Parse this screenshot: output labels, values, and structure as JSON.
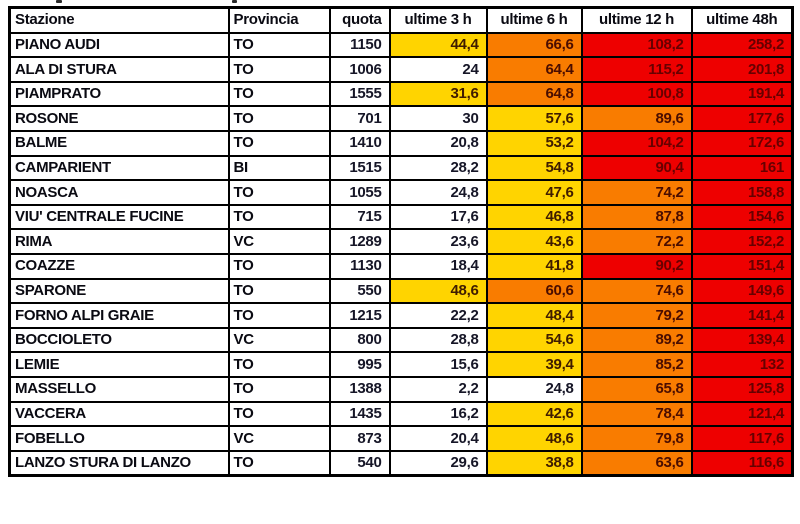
{
  "colors": {
    "band_white": "#FFFFFF",
    "band_yellow": "#FFD400",
    "band_orange": "#F97C00",
    "band_red": "#EE0000",
    "grid": "#000000",
    "text_default": "#0A0A12",
    "text_on_red": "#670000"
  },
  "table": {
    "columns": [
      {
        "key": "stazione",
        "label": "Stazione",
        "align": "left"
      },
      {
        "key": "provincia",
        "label": "Provincia",
        "align": "left"
      },
      {
        "key": "quota",
        "label": "quota",
        "align": "right"
      },
      {
        "key": "u3",
        "label": "ultime 3 h",
        "align": "center"
      },
      {
        "key": "u6",
        "label": "ultime 6 h",
        "align": "center"
      },
      {
        "key": "u12",
        "label": "ultime 12 h",
        "align": "center"
      },
      {
        "key": "u48",
        "label": "ultime 48h",
        "align": "center"
      }
    ],
    "rows": [
      {
        "stazione": "PIANO AUDI",
        "provincia": "TO",
        "quota": "1150",
        "values": [
          {
            "v": "44,4",
            "band": "yellow"
          },
          {
            "v": "66,6",
            "band": "orange"
          },
          {
            "v": "108,2",
            "band": "red"
          },
          {
            "v": "258,2",
            "band": "red"
          }
        ]
      },
      {
        "stazione": "ALA DI STURA",
        "provincia": "TO",
        "quota": "1006",
        "values": [
          {
            "v": "24",
            "band": "white"
          },
          {
            "v": "64,4",
            "band": "orange"
          },
          {
            "v": "115,2",
            "band": "red"
          },
          {
            "v": "201,8",
            "band": "red"
          }
        ]
      },
      {
        "stazione": "PIAMPRATO",
        "provincia": "TO",
        "quota": "1555",
        "values": [
          {
            "v": "31,6",
            "band": "yellow"
          },
          {
            "v": "64,8",
            "band": "orange"
          },
          {
            "v": "100,8",
            "band": "red"
          },
          {
            "v": "191,4",
            "band": "red"
          }
        ]
      },
      {
        "stazione": "ROSONE",
        "provincia": "TO",
        "quota": "701",
        "values": [
          {
            "v": "30",
            "band": "white"
          },
          {
            "v": "57,6",
            "band": "yellow"
          },
          {
            "v": "89,6",
            "band": "orange"
          },
          {
            "v": "177,6",
            "band": "red"
          }
        ]
      },
      {
        "stazione": "BALME",
        "provincia": "TO",
        "quota": "1410",
        "values": [
          {
            "v": "20,8",
            "band": "white"
          },
          {
            "v": "53,2",
            "band": "yellow"
          },
          {
            "v": "104,2",
            "band": "red"
          },
          {
            "v": "172,6",
            "band": "red"
          }
        ]
      },
      {
        "stazione": "CAMPARIENT",
        "provincia": "BI",
        "quota": "1515",
        "values": [
          {
            "v": "28,2",
            "band": "white"
          },
          {
            "v": "54,8",
            "band": "yellow"
          },
          {
            "v": "90,4",
            "band": "red"
          },
          {
            "v": "161",
            "band": "red"
          }
        ]
      },
      {
        "stazione": "NOASCA",
        "provincia": "TO",
        "quota": "1055",
        "values": [
          {
            "v": "24,8",
            "band": "white"
          },
          {
            "v": "47,6",
            "band": "yellow"
          },
          {
            "v": "74,2",
            "band": "orange"
          },
          {
            "v": "158,8",
            "band": "red"
          }
        ]
      },
      {
        "stazione": "VIU' CENTRALE FUCINE",
        "provincia": "TO",
        "quota": "715",
        "values": [
          {
            "v": "17,6",
            "band": "white"
          },
          {
            "v": "46,8",
            "band": "yellow"
          },
          {
            "v": "87,8",
            "band": "orange"
          },
          {
            "v": "154,6",
            "band": "red"
          }
        ]
      },
      {
        "stazione": "RIMA",
        "provincia": "VC",
        "quota": "1289",
        "values": [
          {
            "v": "23,6",
            "band": "white"
          },
          {
            "v": "43,6",
            "band": "yellow"
          },
          {
            "v": "72,2",
            "band": "orange"
          },
          {
            "v": "152,2",
            "band": "red"
          }
        ]
      },
      {
        "stazione": "COAZZE",
        "provincia": "TO",
        "quota": "1130",
        "values": [
          {
            "v": "18,4",
            "band": "white"
          },
          {
            "v": "41,8",
            "band": "yellow"
          },
          {
            "v": "90,2",
            "band": "red"
          },
          {
            "v": "151,4",
            "band": "red"
          }
        ]
      },
      {
        "stazione": "SPARONE",
        "provincia": "TO",
        "quota": "550",
        "values": [
          {
            "v": "48,6",
            "band": "yellow"
          },
          {
            "v": "60,6",
            "band": "orange"
          },
          {
            "v": "74,6",
            "band": "orange"
          },
          {
            "v": "149,6",
            "band": "red"
          }
        ]
      },
      {
        "stazione": "FORNO ALPI GRAIE",
        "provincia": "TO",
        "quota": "1215",
        "values": [
          {
            "v": "22,2",
            "band": "white"
          },
          {
            "v": "48,4",
            "band": "yellow"
          },
          {
            "v": "79,2",
            "band": "orange"
          },
          {
            "v": "141,4",
            "band": "red"
          }
        ]
      },
      {
        "stazione": "BOCCIOLETO",
        "provincia": "VC",
        "quota": "800",
        "values": [
          {
            "v": "28,8",
            "band": "white"
          },
          {
            "v": "54,6",
            "band": "yellow"
          },
          {
            "v": "89,2",
            "band": "orange"
          },
          {
            "v": "139,4",
            "band": "red"
          }
        ]
      },
      {
        "stazione": "LEMIE",
        "provincia": "TO",
        "quota": "995",
        "values": [
          {
            "v": "15,6",
            "band": "white"
          },
          {
            "v": "39,4",
            "band": "yellow"
          },
          {
            "v": "85,2",
            "band": "orange"
          },
          {
            "v": "132",
            "band": "red"
          }
        ]
      },
      {
        "stazione": "MASSELLO",
        "provincia": "TO",
        "quota": "1388",
        "values": [
          {
            "v": "2,2",
            "band": "white"
          },
          {
            "v": "24,8",
            "band": "white"
          },
          {
            "v": "65,8",
            "band": "orange"
          },
          {
            "v": "125,8",
            "band": "red"
          }
        ]
      },
      {
        "stazione": "VACCERA",
        "provincia": "TO",
        "quota": "1435",
        "values": [
          {
            "v": "16,2",
            "band": "white"
          },
          {
            "v": "42,6",
            "band": "yellow"
          },
          {
            "v": "78,4",
            "band": "orange"
          },
          {
            "v": "121,4",
            "band": "red"
          }
        ]
      },
      {
        "stazione": "FOBELLO",
        "provincia": "VC",
        "quota": "873",
        "values": [
          {
            "v": "20,4",
            "band": "white"
          },
          {
            "v": "48,6",
            "band": "yellow"
          },
          {
            "v": "79,8",
            "band": "orange"
          },
          {
            "v": "117,6",
            "band": "red"
          }
        ]
      },
      {
        "stazione": "LANZO STURA DI LANZO",
        "provincia": "TO",
        "quota": "540",
        "values": [
          {
            "v": "29,6",
            "band": "white"
          },
          {
            "v": "38,8",
            "band": "yellow"
          },
          {
            "v": "63,6",
            "band": "orange"
          },
          {
            "v": "116,6",
            "band": "red"
          }
        ]
      }
    ]
  },
  "chart_data": {
    "type": "table",
    "columns": [
      "Stazione",
      "Provincia",
      "quota",
      "ultime 3 h",
      "ultime 6 h",
      "ultime 12 h",
      "ultime 48h"
    ],
    "rows": [
      [
        "PIANO AUDI",
        "TO",
        1150,
        44.4,
        66.6,
        108.2,
        258.2
      ],
      [
        "ALA DI STURA",
        "TO",
        1006,
        24,
        64.4,
        115.2,
        201.8
      ],
      [
        "PIAMPRATO",
        "TO",
        1555,
        31.6,
        64.8,
        100.8,
        191.4
      ],
      [
        "ROSONE",
        "TO",
        701,
        30,
        57.6,
        89.6,
        177.6
      ],
      [
        "BALME",
        "TO",
        1410,
        20.8,
        53.2,
        104.2,
        172.6
      ],
      [
        "CAMPARIENT",
        "BI",
        1515,
        28.2,
        54.8,
        90.4,
        161
      ],
      [
        "NOASCA",
        "TO",
        1055,
        24.8,
        47.6,
        74.2,
        158.8
      ],
      [
        "VIU' CENTRALE FUCINE",
        "TO",
        715,
        17.6,
        46.8,
        87.8,
        154.6
      ],
      [
        "RIMA",
        "VC",
        1289,
        23.6,
        43.6,
        72.2,
        152.2
      ],
      [
        "COAZZE",
        "TO",
        1130,
        18.4,
        41.8,
        90.2,
        151.4
      ],
      [
        "SPARONE",
        "TO",
        550,
        48.6,
        60.6,
        74.6,
        149.6
      ],
      [
        "FORNO ALPI GRAIE",
        "TO",
        1215,
        22.2,
        48.4,
        79.2,
        141.4
      ],
      [
        "BOCCIOLETO",
        "VC",
        800,
        28.8,
        54.6,
        89.2,
        139.4
      ],
      [
        "LEMIE",
        "TO",
        995,
        15.6,
        39.4,
        85.2,
        132
      ],
      [
        "MASSELLO",
        "TO",
        1388,
        2.2,
        24.8,
        65.8,
        125.8
      ],
      [
        "VACCERA",
        "TO",
        1435,
        16.2,
        42.6,
        78.4,
        121.4
      ],
      [
        "FOBELLO",
        "VC",
        873,
        20.4,
        48.6,
        79.8,
        117.6
      ],
      [
        "LANZO STURA DI LANZO",
        "TO",
        540,
        29.6,
        38.8,
        63.6,
        116.6
      ]
    ]
  }
}
